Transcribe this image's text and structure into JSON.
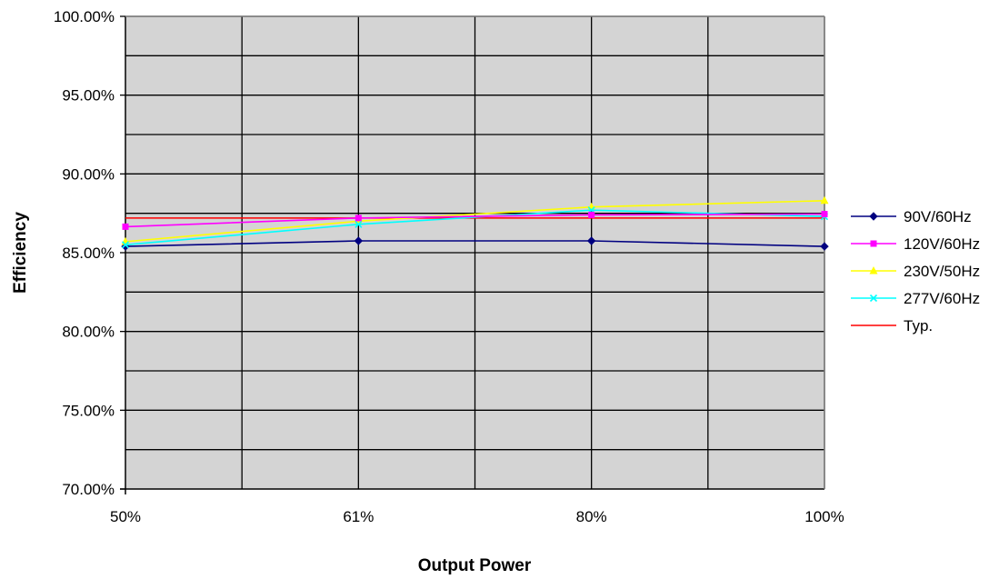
{
  "chart_data": {
    "type": "line",
    "title": "",
    "xlabel": "Output Power",
    "ylabel": "Efficiency",
    "x_ticks": [
      "50%",
      "61%",
      "80%",
      "100%"
    ],
    "y_ticks": [
      "70.00%",
      "75.00%",
      "80.00%",
      "85.00%",
      "90.00%",
      "95.00%",
      "100.00%"
    ],
    "ylim": [
      70,
      100
    ],
    "grid": true,
    "legend_position": "right",
    "series": [
      {
        "name": "90V/60Hz",
        "color": "#000080",
        "marker": "diamond",
        "values": [
          85.4,
          85.75,
          85.75,
          85.4
        ]
      },
      {
        "name": "120V/60Hz",
        "color": "#ff00ff",
        "marker": "square",
        "values": [
          86.65,
          87.2,
          87.4,
          87.45
        ]
      },
      {
        "name": "230V/50Hz",
        "color": "#ffff00",
        "marker": "triangle",
        "values": [
          85.7,
          87.0,
          87.9,
          88.3
        ]
      },
      {
        "name": "277V/60Hz",
        "color": "#00ffff",
        "marker": "x",
        "values": [
          85.5,
          86.8,
          87.7,
          87.3
        ]
      },
      {
        "name": "Typ.",
        "color": "#ff0000",
        "marker": "none",
        "values": [
          87.2,
          87.2,
          87.2,
          87.2
        ]
      }
    ]
  }
}
